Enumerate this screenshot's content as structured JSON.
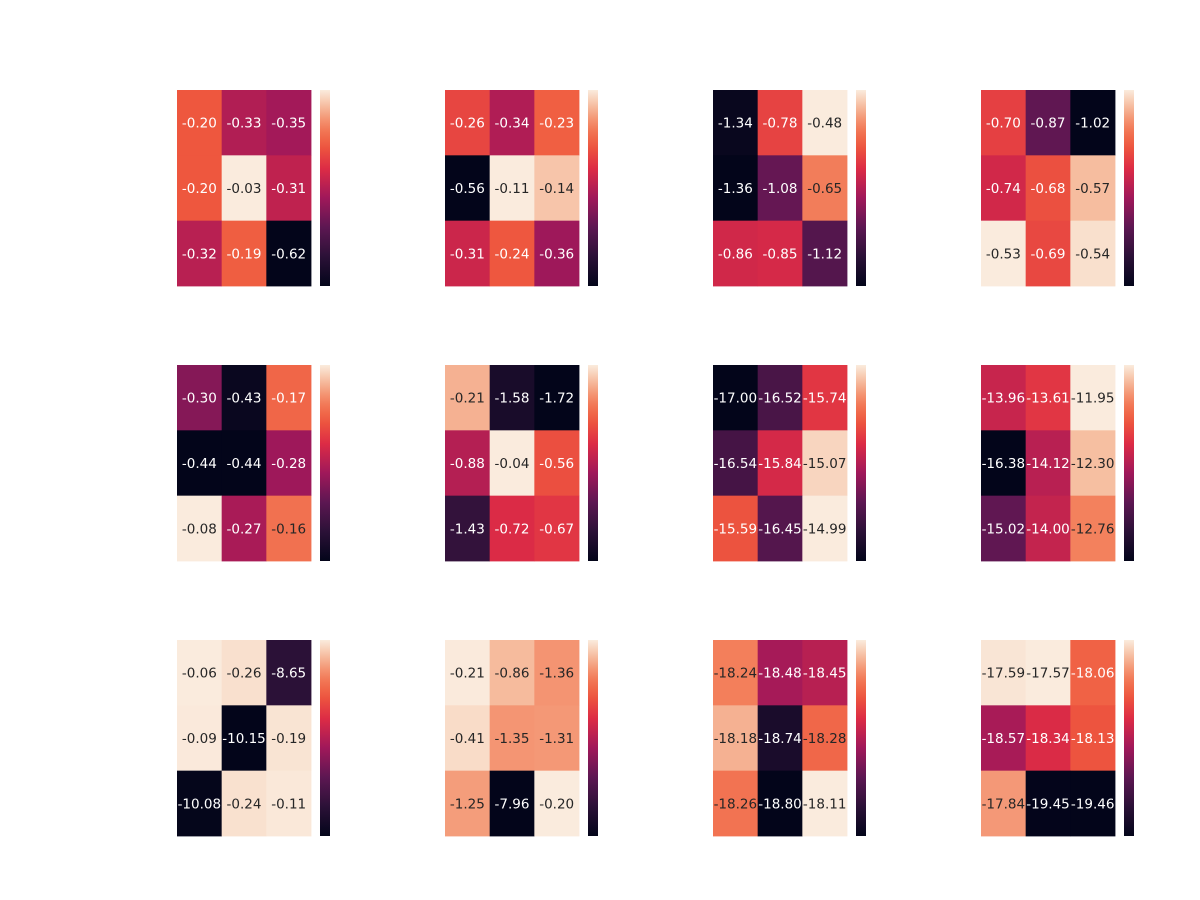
{
  "colormap": "rocket",
  "chart_data": [
    {
      "type": "heatmap",
      "title": "",
      "xlabel": "",
      "ylabel": "",
      "values": [
        [
          -0.2,
          -0.33,
          -0.35
        ],
        [
          -0.2,
          -0.03,
          -0.31
        ],
        [
          -0.32,
          -0.19,
          -0.62
        ]
      ]
    },
    {
      "type": "heatmap",
      "title": "",
      "xlabel": "",
      "ylabel": "",
      "values": [
        [
          -0.26,
          -0.34,
          -0.23
        ],
        [
          -0.56,
          -0.11,
          -0.14
        ],
        [
          -0.31,
          -0.24,
          -0.36
        ]
      ]
    },
    {
      "type": "heatmap",
      "title": "",
      "xlabel": "",
      "ylabel": "",
      "values": [
        [
          -1.34,
          -0.78,
          -0.48
        ],
        [
          -1.36,
          -1.08,
          -0.65
        ],
        [
          -0.86,
          -0.85,
          -1.12
        ]
      ]
    },
    {
      "type": "heatmap",
      "title": "",
      "xlabel": "",
      "ylabel": "",
      "values": [
        [
          -0.7,
          -0.87,
          -1.02
        ],
        [
          -0.74,
          -0.68,
          -0.57
        ],
        [
          -0.53,
          -0.69,
          -0.54
        ]
      ]
    },
    {
      "type": "heatmap",
      "title": "",
      "xlabel": "",
      "ylabel": "",
      "values": [
        [
          -0.3,
          -0.43,
          -0.17
        ],
        [
          -0.44,
          -0.44,
          -0.28
        ],
        [
          -0.08,
          -0.27,
          -0.16
        ]
      ]
    },
    {
      "type": "heatmap",
      "title": "",
      "xlabel": "",
      "ylabel": "",
      "values": [
        [
          -0.21,
          -1.58,
          -1.72
        ],
        [
          -0.88,
          -0.04,
          -0.56
        ],
        [
          -1.43,
          -0.72,
          -0.67
        ]
      ]
    },
    {
      "type": "heatmap",
      "title": "",
      "xlabel": "",
      "ylabel": "",
      "values": [
        [
          -17.0,
          -16.52,
          -15.74
        ],
        [
          -16.54,
          -15.84,
          -15.07
        ],
        [
          -15.59,
          -16.45,
          -14.99
        ]
      ]
    },
    {
      "type": "heatmap",
      "title": "",
      "xlabel": "",
      "ylabel": "",
      "values": [
        [
          -13.96,
          -13.61,
          -11.95
        ],
        [
          -16.38,
          -14.12,
          -12.3
        ],
        [
          -15.02,
          -14.0,
          -12.76
        ]
      ]
    },
    {
      "type": "heatmap",
      "title": "",
      "xlabel": "",
      "ylabel": "",
      "values": [
        [
          -0.06,
          -0.26,
          -8.65
        ],
        [
          -0.09,
          -10.15,
          -0.19
        ],
        [
          -10.08,
          -0.24,
          -0.11
        ]
      ]
    },
    {
      "type": "heatmap",
      "title": "",
      "xlabel": "",
      "ylabel": "",
      "values": [
        [
          -0.21,
          -0.86,
          -1.36
        ],
        [
          -0.41,
          -1.35,
          -1.31
        ],
        [
          -1.25,
          -7.96,
          -0.2
        ]
      ]
    },
    {
      "type": "heatmap",
      "title": "",
      "xlabel": "",
      "ylabel": "",
      "values": [
        [
          -18.24,
          -18.48,
          -18.45
        ],
        [
          -18.18,
          -18.74,
          -18.28
        ],
        [
          -18.26,
          -18.8,
          -18.11
        ]
      ]
    },
    {
      "type": "heatmap",
      "title": "",
      "xlabel": "",
      "ylabel": "",
      "values": [
        [
          -17.59,
          -17.57,
          -18.06
        ],
        [
          -18.57,
          -18.34,
          -18.13
        ],
        [
          -17.84,
          -19.45,
          -19.46
        ]
      ]
    }
  ]
}
